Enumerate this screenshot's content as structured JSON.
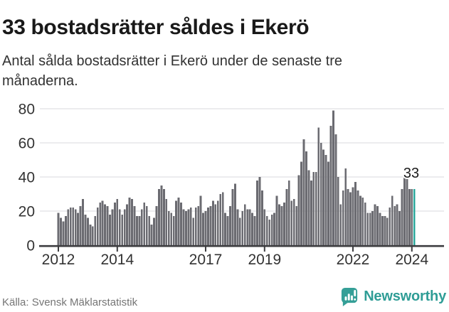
{
  "header": {
    "title": "33 bostadsrätter såldes i Ekerö",
    "subtitle": "Antal sålda bostadsrätter i Ekerö under de senaste tre månaderna."
  },
  "footer": {
    "source": "Källa: Svensk Mäklarstatistik",
    "brand": "Newsworthy"
  },
  "colors": {
    "bar": "#6b6b71",
    "highlight": "#29a79b",
    "axis": "#3d3d40",
    "gridline": "#e6e6e8",
    "tick_label": "#333333",
    "annotation": "#1a1a1a",
    "brand_teal": "#359f97"
  },
  "chart_data": {
    "type": "bar",
    "title": "33 bostadsrätter såldes i Ekerö",
    "subtitle": "Antal sålda bostadsrätter i Ekerö under de senaste tre månaderna.",
    "xlabel": "",
    "ylabel": "",
    "ylim": [
      0,
      86
    ],
    "grid": true,
    "legend": "none",
    "frequency": "monthly, rolling 3-month totals",
    "y_axis": {
      "tick_values": [
        0,
        20,
        40,
        60,
        80
      ],
      "gridline_values": [
        20,
        40,
        60,
        80
      ]
    },
    "x_axis": {
      "ticks": [
        {
          "label": "2012",
          "month_index": 0
        },
        {
          "label": "2014",
          "month_index": 24
        },
        {
          "label": "2017",
          "month_index": 60
        },
        {
          "label": "2019",
          "month_index": 84
        },
        {
          "label": "2022",
          "month_index": 120
        },
        {
          "label": "2024",
          "month_index": 144
        }
      ]
    },
    "values_by_year": [
      {
        "year": 2012,
        "values": [
          19,
          16,
          14,
          17,
          21,
          22,
          22,
          21,
          19,
          23,
          27,
          18
        ]
      },
      {
        "year": 2013,
        "values": [
          16,
          12,
          11,
          17,
          22,
          25,
          26,
          24,
          23,
          18,
          21,
          25
        ]
      },
      {
        "year": 2014,
        "values": [
          27,
          21,
          18,
          21,
          24,
          28,
          27,
          23,
          17,
          17,
          21,
          25
        ]
      },
      {
        "year": 2015,
        "values": [
          23,
          17,
          12,
          16,
          23,
          33,
          35,
          33,
          27,
          20,
          19,
          17
        ]
      },
      {
        "year": 2016,
        "values": [
          26,
          28,
          25,
          21,
          20,
          21,
          22,
          16,
          22,
          23,
          29,
          19
        ]
      },
      {
        "year": 2017,
        "values": [
          20,
          22,
          23,
          26,
          24,
          26,
          30,
          31,
          19,
          17,
          23,
          33
        ]
      },
      {
        "year": 2018,
        "values": [
          36,
          21,
          16,
          20,
          24,
          21,
          21,
          19,
          17,
          38,
          40,
          32
        ]
      },
      {
        "year": 2019,
        "values": [
          21,
          17,
          15,
          18,
          19,
          29,
          24,
          23,
          25,
          33,
          38,
          26
        ]
      },
      {
        "year": 2020,
        "values": [
          27,
          23,
          41,
          49,
          62,
          55,
          44,
          38,
          43,
          43,
          69,
          60
        ]
      },
      {
        "year": 2021,
        "values": [
          56,
          53,
          49,
          70,
          79,
          65,
          40,
          24,
          32,
          45,
          33,
          31
        ]
      },
      {
        "year": 2022,
        "values": [
          34,
          37,
          32,
          29,
          28,
          25,
          19,
          19,
          20,
          24,
          23,
          19
        ]
      },
      {
        "year": 2023,
        "values": [
          17,
          17,
          16,
          22,
          29,
          23,
          24,
          20,
          33,
          40,
          39,
          33
        ]
      },
      {
        "year": 2024,
        "values": [
          33,
          33
        ]
      }
    ],
    "highlight_last": {
      "value": 33,
      "label": "33"
    }
  }
}
